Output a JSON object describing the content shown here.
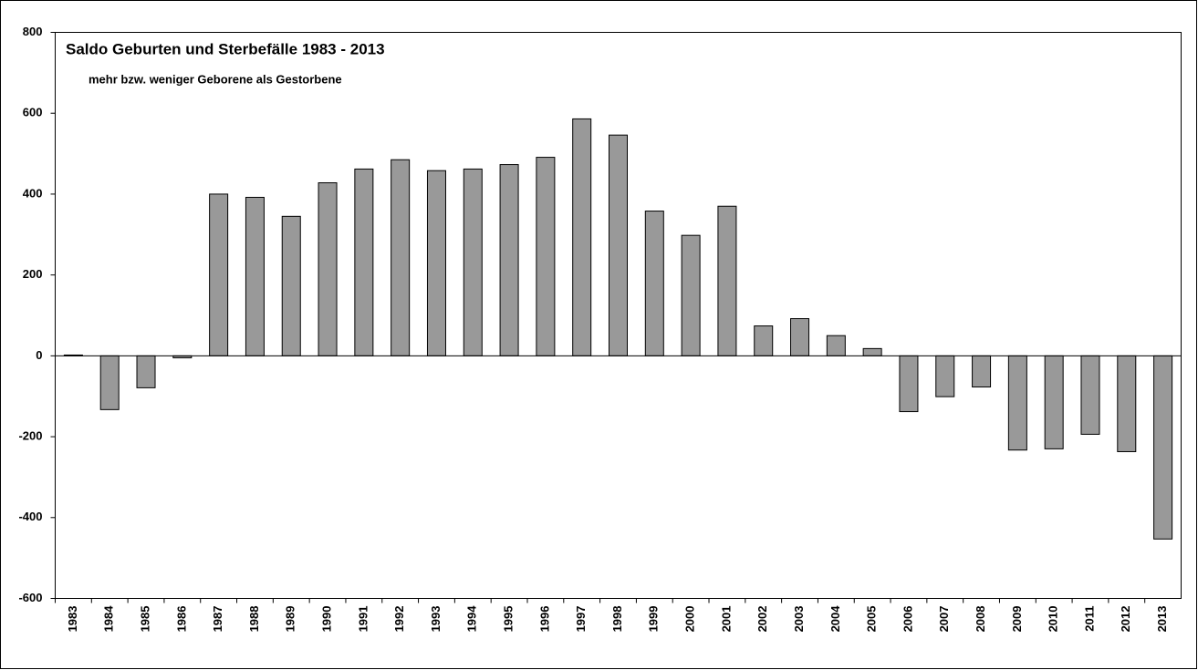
{
  "chart_data": {
    "type": "bar",
    "title": "Saldo Geburten und Sterbefälle 1983 - 2013",
    "subtitle": "mehr bzw. weniger Geborene als Gestorbene",
    "categories": [
      "1983",
      "1984",
      "1985",
      "1986",
      "1987",
      "1988",
      "1989",
      "1990",
      "1991",
      "1992",
      "1993",
      "1994",
      "1995",
      "1996",
      "1997",
      "1998",
      "1999",
      "2000",
      "2001",
      "2002",
      "2003",
      "2004",
      "2005",
      "2006",
      "2007",
      "2008",
      "2009",
      "2010",
      "2011",
      "2012",
      "2013"
    ],
    "values": [
      2,
      -133,
      -79,
      -5,
      400,
      392,
      345,
      428,
      462,
      485,
      458,
      462,
      473,
      491,
      586,
      546,
      358,
      298,
      370,
      74,
      92,
      50,
      18,
      -138,
      -101,
      -77,
      -233,
      -230,
      -194,
      -237,
      -453
    ],
    "color": "#999999",
    "ylim": [
      -600,
      800
    ],
    "yticks": [
      -600,
      -400,
      -200,
      0,
      200,
      400,
      600,
      800
    ],
    "grid": false
  }
}
